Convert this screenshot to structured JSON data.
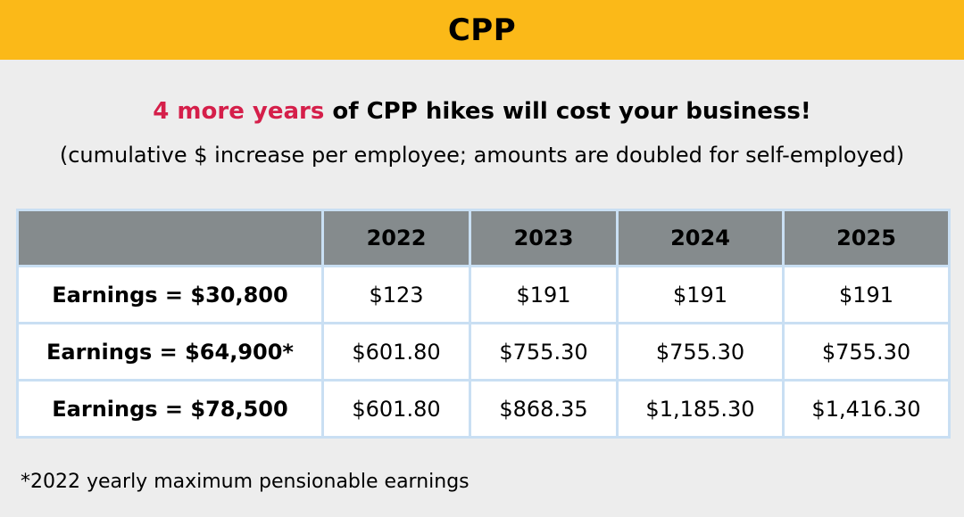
{
  "banner": {
    "title": "CPP"
  },
  "headline": {
    "accent": "4 more years",
    "rest": " of CPP hikes will cost your business!"
  },
  "subheadline": "(cumulative $ increase per employee; amounts are doubled for self-employed)",
  "chart_data": {
    "type": "table",
    "title": "4 more years of CPP hikes will cost your business!",
    "subtitle": "(cumulative $ increase per employee; amounts are doubled for self-employed)",
    "columns": [
      "",
      "2022",
      "2023",
      "2024",
      "2025"
    ],
    "rows": [
      {
        "label": "Earnings = $30,800",
        "values": [
          "$123",
          "$191",
          "$191",
          "$191"
        ]
      },
      {
        "label": "Earnings = $64,900*",
        "values": [
          "$601.80",
          "$755.30",
          "$755.30",
          "$755.30"
        ]
      },
      {
        "label": "Earnings = $78,500",
        "values": [
          "$601.80",
          "$868.35",
          "$1,185.30",
          "$1,416.30"
        ]
      }
    ],
    "footnote": "*2022 yearly maximum pensionable earnings"
  },
  "colors": {
    "banner": "#fbb918",
    "accent": "#d51f4a",
    "header_fill": "#858b8d",
    "cell_border": "#c9dff3",
    "background": "#ededed"
  }
}
